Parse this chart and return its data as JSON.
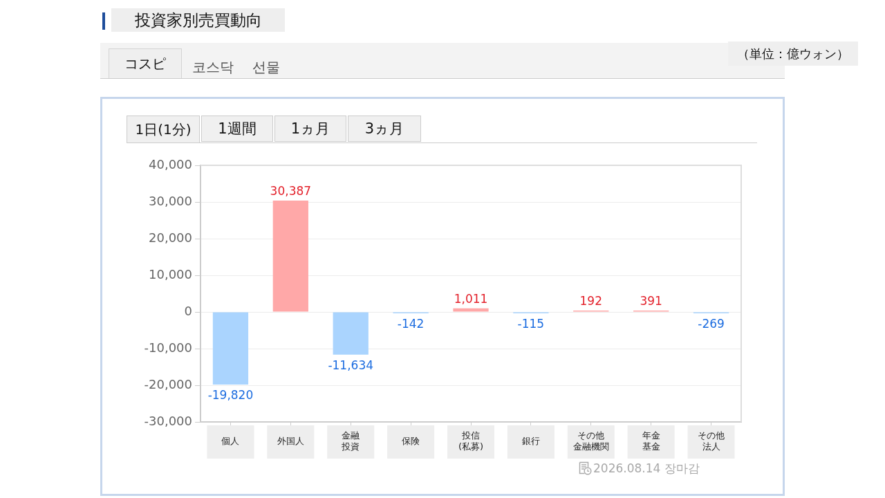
{
  "chart_data": {
    "type": "bar",
    "title": "投資家別売買動向",
    "categories": [
      "個人",
      "外国人",
      "金融投資",
      "保険",
      "投信(私募)",
      "銀行",
      "その他金融機関",
      "年金基金",
      "その他法人"
    ],
    "values": [
      -19820,
      30387,
      -11634,
      -142,
      1011,
      -115,
      192,
      391,
      -269
    ],
    "colors": [
      "#aad4fe",
      "#ffa8a8",
      "#aad4fe",
      "#aad4fe",
      "#ffa8a8",
      "#aad4fe",
      "#ffa8a8",
      "#ffa8a8",
      "#aad4fe"
    ],
    "value_labels": [
      "-19,820",
      "30,387",
      "-11,634",
      "-142",
      "1,011",
      "-115",
      "192",
      "391",
      "-269"
    ],
    "ylim": [
      -30000,
      40000
    ],
    "yticks": [
      {
        "value": -30000,
        "label": "-30,000"
      },
      {
        "value": -20000,
        "label": "-20,000"
      },
      {
        "value": -10000,
        "label": "-10,000"
      },
      0,
      {
        "value": 10000,
        "label": "10,000"
      },
      {
        "value": 20000,
        "label": "20,000"
      },
      {
        "value": 30000,
        "label": "30,000"
      },
      {
        "value": 40000,
        "label": "40,000"
      }
    ],
    "grid": "y",
    "annotations": [
      "コスピ",
      "코스닥",
      "선물",
      "1日(1分)",
      "1週間",
      "1ヵ月",
      "3ヵ月",
      "（単位：億ウォン）",
      "2026.08.14 장마감"
    ]
  }
}
